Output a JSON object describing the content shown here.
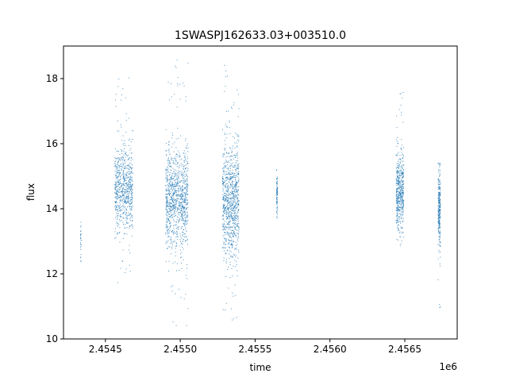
{
  "chart_data": {
    "type": "scatter",
    "title": "1SWASPJ162633.03+003510.0",
    "xlabel": "time",
    "ylabel": "flux",
    "x_offset_label": "1e6",
    "xlim": [
      2454220,
      2456850
    ],
    "ylim": [
      10,
      19
    ],
    "x_ticks": [
      2454500,
      2455000,
      2455500,
      2456000,
      2456500
    ],
    "x_tick_labels": [
      "2.4545",
      "2.4550",
      "2.4555",
      "2.4560",
      "2.4565"
    ],
    "y_ticks": [
      10,
      12,
      14,
      16,
      18
    ],
    "y_tick_labels": [
      "10",
      "12",
      "14",
      "16",
      "18"
    ],
    "marker_color": "#1f77b4",
    "marker": "small dots",
    "grid": false,
    "clusters": [
      {
        "x_start": 2454330,
        "x_end": 2454336,
        "y_center": 13.0,
        "y_spread": 0.35,
        "y_min": 12.4,
        "y_max": 13.6,
        "count": 30
      },
      {
        "x_start": 2454560,
        "x_end": 2454680,
        "y_center": 14.6,
        "y_spread": 0.65,
        "y_min": 11.5,
        "y_max": 18.2,
        "count": 700
      },
      {
        "x_start": 2454900,
        "x_end": 2455050,
        "y_center": 14.3,
        "y_spread": 0.75,
        "y_min": 10.4,
        "y_max": 18.6,
        "count": 1000
      },
      {
        "x_start": 2455280,
        "x_end": 2455390,
        "y_center": 14.2,
        "y_spread": 0.85,
        "y_min": 10.5,
        "y_max": 18.6,
        "count": 900
      },
      {
        "x_start": 2455640,
        "x_end": 2455648,
        "y_center": 14.5,
        "y_spread": 0.3,
        "y_min": 13.0,
        "y_max": 15.2,
        "count": 80
      },
      {
        "x_start": 2456440,
        "x_end": 2456490,
        "y_center": 14.6,
        "y_spread": 0.55,
        "y_min": 12.8,
        "y_max": 17.6,
        "count": 500
      },
      {
        "x_start": 2456720,
        "x_end": 2456735,
        "y_center": 14.0,
        "y_spread": 0.6,
        "y_min": 10.9,
        "y_max": 15.4,
        "count": 260
      }
    ]
  }
}
